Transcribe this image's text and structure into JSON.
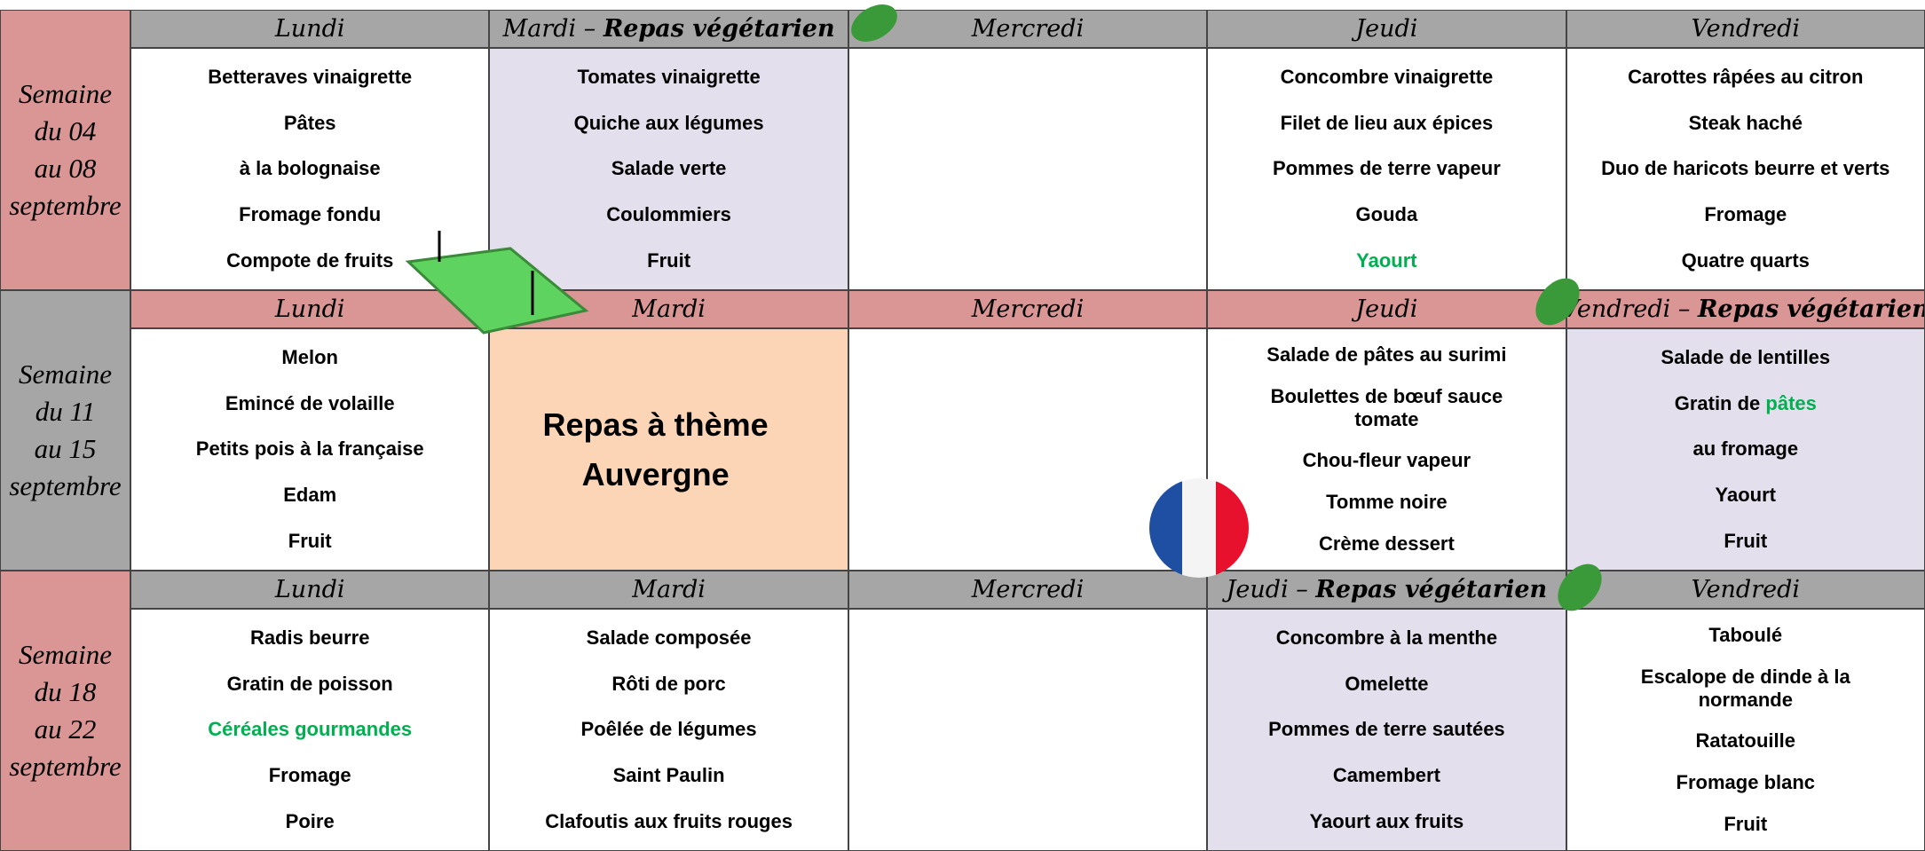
{
  "weeks": [
    {
      "label": [
        "Semaine",
        "du 04",
        "au 08",
        "septembre"
      ],
      "label_color": "#d99694",
      "header_color": "#a6a6a6",
      "days": [
        {
          "day": "Lundi",
          "items": [
            "Betteraves vinaigrette",
            "Pâtes",
            "à la bolognaise",
            "Fromage fondu",
            "Compote de fruits"
          ]
        },
        {
          "day": "Mardi – ",
          "note": "Repas végétarien",
          "cell_color": "#e4dfec",
          "items": [
            "Tomates vinaigrette",
            "Quiche aux légumes",
            "Salade verte",
            "Coulommiers",
            "Fruit"
          ]
        },
        {
          "day": "Mercredi",
          "items": []
        },
        {
          "day": "Jeudi",
          "items": [
            "Concombre vinaigrette",
            "Filet de lieu aux épices",
            "Pommes de terre vapeur",
            "Gouda",
            {
              "text": "Yaourt",
              "color": "#00b050"
            }
          ]
        },
        {
          "day": "Vendredi",
          "items": [
            "Carottes râpées au citron",
            "Steak haché",
            "Duo de haricots beurre et verts",
            "Fromage",
            "Quatre quarts"
          ]
        }
      ]
    },
    {
      "label": [
        "Semaine",
        "du 11",
        "au 15",
        "septembre"
      ],
      "label_color": "#a6a6a6",
      "header_color": "#d99694",
      "days": [
        {
          "day": "Lundi",
          "items": [
            "Melon",
            "Emincé de volaille",
            "Petits pois à la française",
            "Edam",
            "Fruit"
          ]
        },
        {
          "day": "Mardi",
          "cell_color": "#fbd5b5",
          "theme": [
            "Repas à thème",
            "Auvergne"
          ],
          "items": []
        },
        {
          "day": "Mercredi",
          "items": []
        },
        {
          "day": "Jeudi",
          "items": [
            "Salade de pâtes au surimi",
            "Boulettes de bœuf sauce tomate",
            "Chou-fleur vapeur",
            "Tomme noire",
            "Crème dessert"
          ]
        },
        {
          "day": "Vendredi – ",
          "note": "Repas végétarien",
          "cell_color": "#e4dfec",
          "items": [
            "Salade de lentilles",
            {
              "text": "Gratin de ",
              "highlight": "pâtes",
              "color": "#00b050"
            },
            "au fromage",
            "Yaourt",
            "Fruit"
          ]
        }
      ]
    },
    {
      "label": [
        "Semaine",
        "du 18",
        "au 22",
        "septembre"
      ],
      "label_color": "#d99694",
      "header_color": "#a6a6a6",
      "days": [
        {
          "day": "Lundi",
          "items": [
            "Radis beurre",
            "Gratin de poisson",
            {
              "text": "Céréales gourmandes",
              "color": "#00b050"
            },
            "Fromage",
            "Poire"
          ]
        },
        {
          "day": "Mardi",
          "items": [
            "Salade composée",
            "Rôti de porc",
            "Poêlée de légumes",
            "Saint Paulin",
            "Clafoutis aux fruits rouges"
          ]
        },
        {
          "day": "Mercredi",
          "items": []
        },
        {
          "day": "Jeudi – ",
          "note": "Repas végétarien",
          "cell_color": "#e4dfec",
          "items": [
            "Concombre à la menthe",
            "Omelette",
            "Pommes de terre sautées",
            "Camembert",
            "Yaourt aux fruits"
          ]
        },
        {
          "day": "Vendredi",
          "items": [
            "Taboulé",
            "Escalope de dinde à la normande",
            "Ratatouille",
            "Fromage blanc",
            "Fruit"
          ]
        }
      ]
    }
  ]
}
